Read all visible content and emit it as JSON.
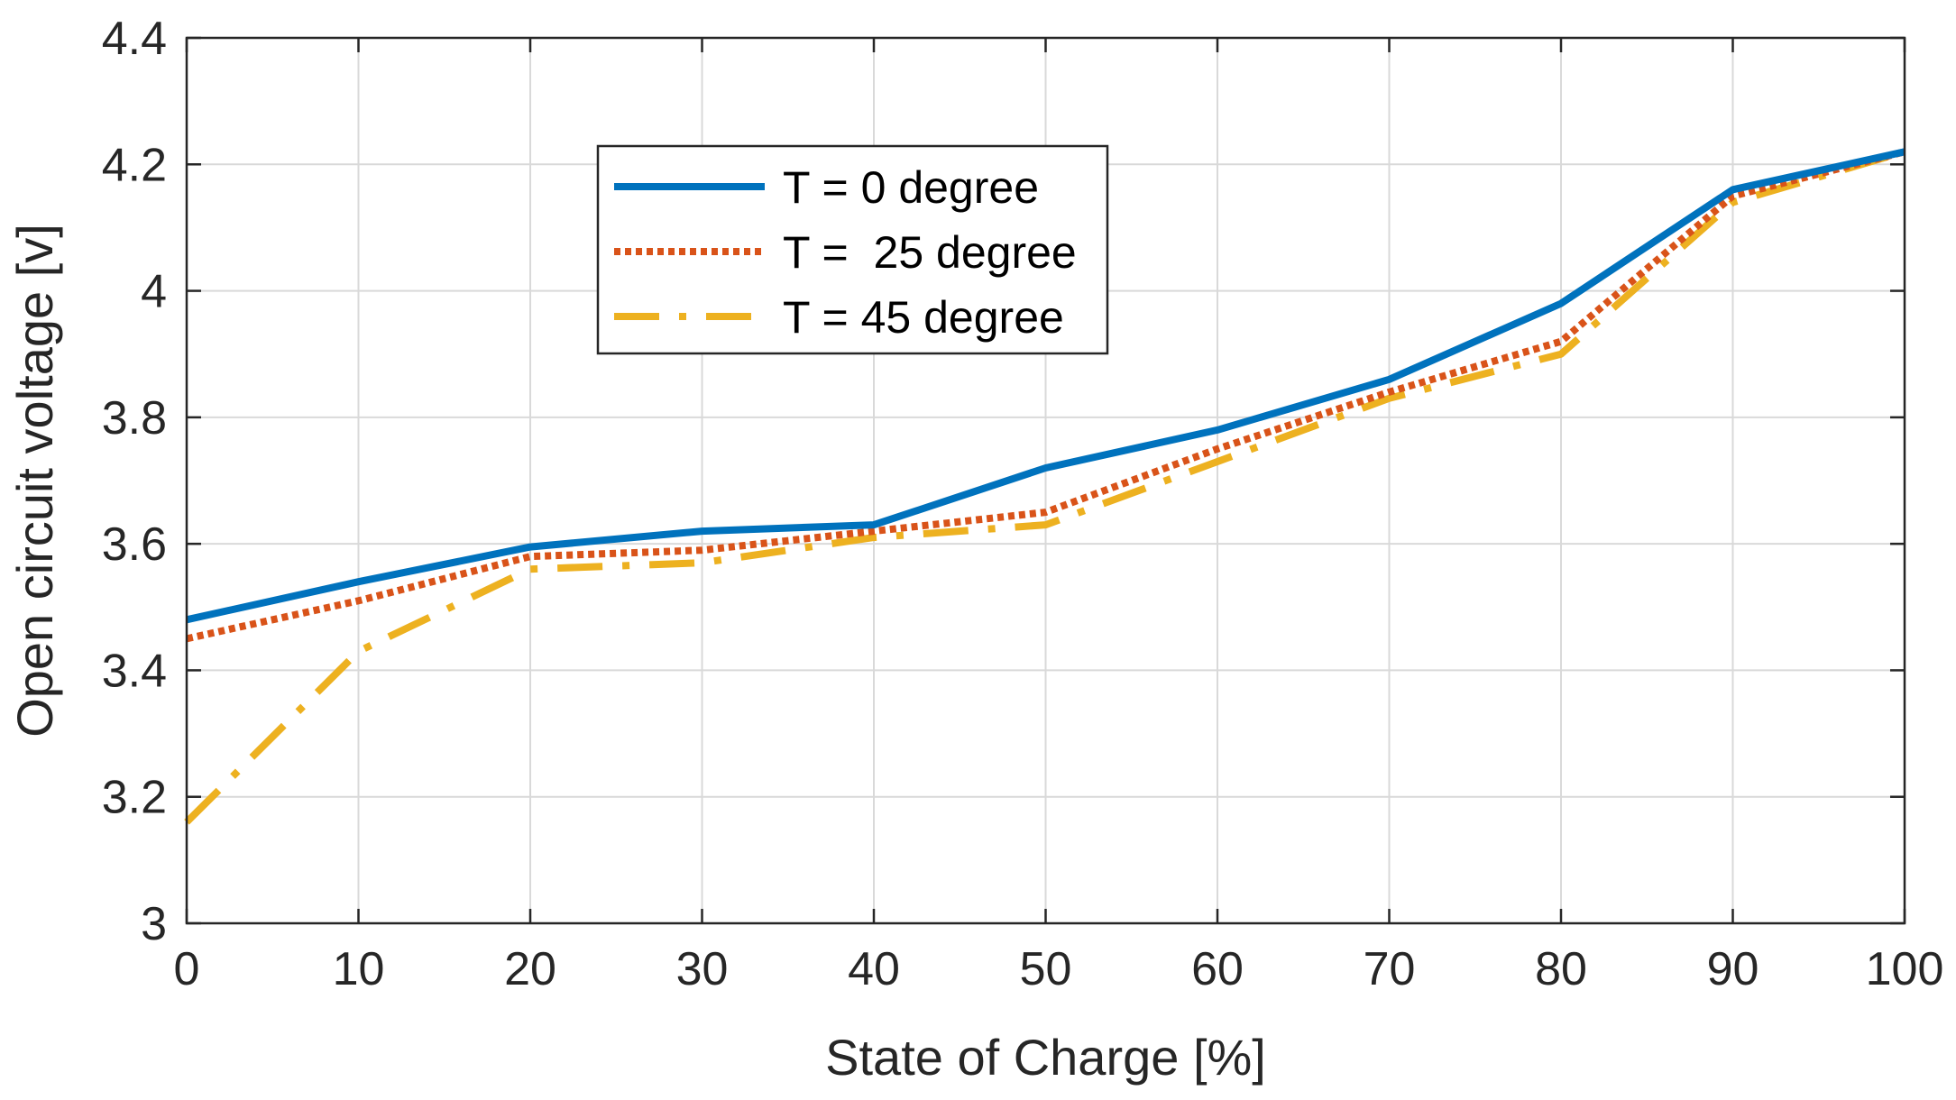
{
  "chart_data": {
    "type": "line",
    "title": "",
    "xlabel": "State of Charge [%]",
    "ylabel": "Open circuit voltage [v]",
    "xlim": [
      0,
      100
    ],
    "ylim": [
      3,
      4.4
    ],
    "xticks": [
      0,
      10,
      20,
      30,
      40,
      50,
      60,
      70,
      80,
      90,
      100
    ],
    "yticks": [
      3,
      3.2,
      3.4,
      3.6,
      3.8,
      4,
      4.2,
      4.4
    ],
    "xtick_labels": [
      "0",
      "10",
      "20",
      "30",
      "40",
      "50",
      "60",
      "70",
      "80",
      "90",
      "100"
    ],
    "ytick_labels": [
      "3",
      "3.2",
      "3.4",
      "3.6",
      "3.8",
      "4",
      "4.2",
      "4.4"
    ],
    "grid": true,
    "legend_position": "upper-center-left",
    "x": [
      0,
      10,
      20,
      30,
      40,
      50,
      60,
      70,
      80,
      90,
      100
    ],
    "series": [
      {
        "name": "T = 0 degree",
        "color": "#0072BD",
        "style": "solid",
        "values": [
          3.48,
          3.54,
          3.595,
          3.62,
          3.63,
          3.72,
          3.78,
          3.86,
          3.98,
          4.16,
          4.22
        ]
      },
      {
        "name": "T =  25 degree",
        "color": "#D95319",
        "style": "dotted",
        "values": [
          3.45,
          3.51,
          3.58,
          3.59,
          3.62,
          3.65,
          3.75,
          3.84,
          3.92,
          4.15,
          4.22
        ]
      },
      {
        "name": "T = 45 degree",
        "color": "#EDB120",
        "style": "dashdot",
        "values": [
          3.16,
          3.43,
          3.56,
          3.57,
          3.61,
          3.63,
          3.73,
          3.83,
          3.9,
          4.14,
          4.22
        ]
      }
    ]
  }
}
